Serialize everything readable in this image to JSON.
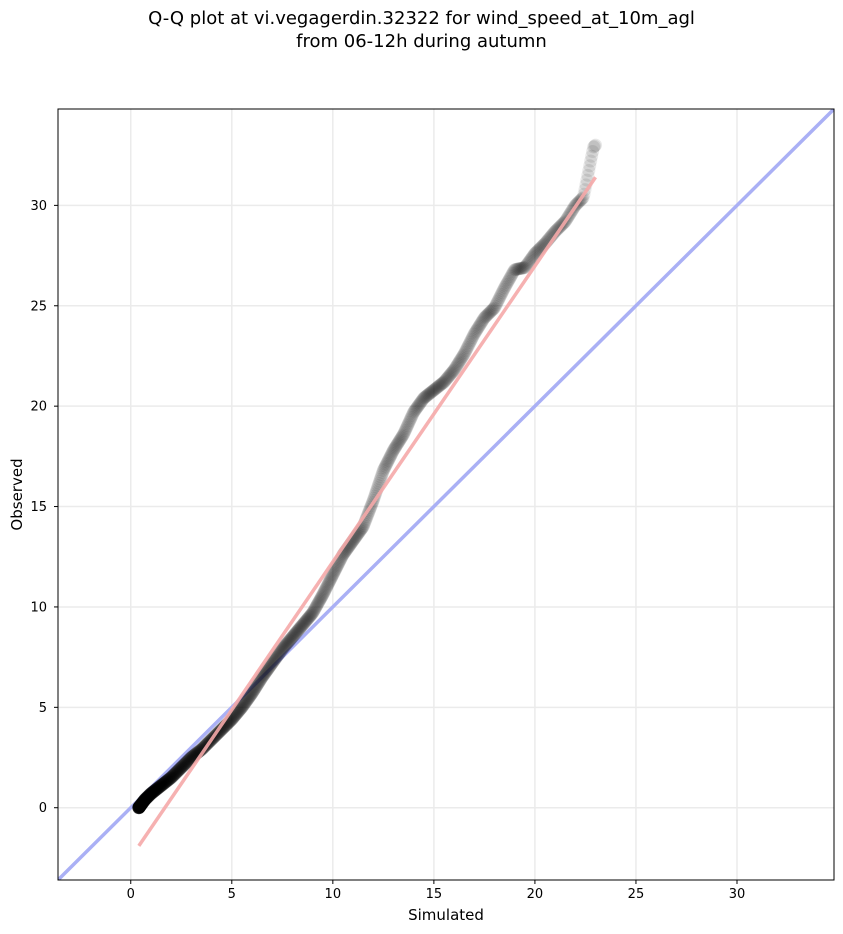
{
  "title": {
    "line1": "Q-Q plot at vi.vegagerdin.32322 for wind_speed_at_10m_agl",
    "line2": "from 06-12h during autumn"
  },
  "chart_data": {
    "type": "scatter",
    "title": "Q-Q plot at vi.vegagerdin.32322 for wind_speed_at_10m_agl from 06-12h during autumn",
    "xlabel": "Simulated",
    "ylabel": "Observed",
    "xlim": [
      -3.6,
      34.8
    ],
    "ylim": [
      -3.6,
      34.8
    ],
    "xticks": [
      0,
      5,
      10,
      15,
      20,
      25,
      30
    ],
    "yticks": [
      0,
      5,
      10,
      15,
      20,
      25,
      30
    ],
    "grid": true,
    "colors": {
      "points": "#000000",
      "identity_line": "#aab0f5",
      "fit_line": "#f5a8a8",
      "frame": "#000000",
      "grid": "#ebebeb"
    },
    "quantile_curve": {
      "description_free_points": [
        [
          0.4,
          0.0
        ],
        [
          0.7,
          0.4
        ],
        [
          1.0,
          0.7
        ],
        [
          1.5,
          1.1
        ],
        [
          2.0,
          1.5
        ],
        [
          2.5,
          2.0
        ],
        [
          3.0,
          2.5
        ],
        [
          3.5,
          2.9
        ],
        [
          4.0,
          3.4
        ],
        [
          4.5,
          3.9
        ],
        [
          5.0,
          4.4
        ],
        [
          5.5,
          5.0
        ],
        [
          6.0,
          5.7
        ],
        [
          6.5,
          6.5
        ],
        [
          7.0,
          7.2
        ],
        [
          7.5,
          7.9
        ],
        [
          8.0,
          8.5
        ],
        [
          8.5,
          9.1
        ],
        [
          9.0,
          9.7
        ],
        [
          9.5,
          10.6
        ],
        [
          10.0,
          11.6
        ],
        [
          10.5,
          12.6
        ],
        [
          11.0,
          13.3
        ],
        [
          11.5,
          14.0
        ],
        [
          12.0,
          15.3
        ],
        [
          12.5,
          16.8
        ],
        [
          13.0,
          17.8
        ],
        [
          13.5,
          18.6
        ],
        [
          14.0,
          19.7
        ],
        [
          14.5,
          20.4
        ],
        [
          15.0,
          20.8
        ],
        [
          15.5,
          21.2
        ],
        [
          16.0,
          21.8
        ],
        [
          16.5,
          22.6
        ],
        [
          17.0,
          23.6
        ],
        [
          17.5,
          24.4
        ],
        [
          18.0,
          24.9
        ],
        [
          18.5,
          25.9
        ],
        [
          19.0,
          26.8
        ],
        [
          19.5,
          26.9
        ],
        [
          20.0,
          27.6
        ],
        [
          20.5,
          28.1
        ],
        [
          21.0,
          28.7
        ],
        [
          21.5,
          29.2
        ],
        [
          22.0,
          30.0
        ],
        [
          22.4,
          30.4
        ],
        [
          22.9,
          32.9
        ],
        [
          23.0,
          33.0
        ]
      ],
      "n_points": 900
    },
    "series": [
      {
        "type": "line",
        "points": [
          [
            -3.6,
            -3.6
          ],
          [
            34.8,
            34.8
          ]
        ]
      },
      {
        "type": "line",
        "points": [
          [
            0.4,
            -1.9
          ],
          [
            23.0,
            31.4
          ]
        ]
      }
    ]
  }
}
